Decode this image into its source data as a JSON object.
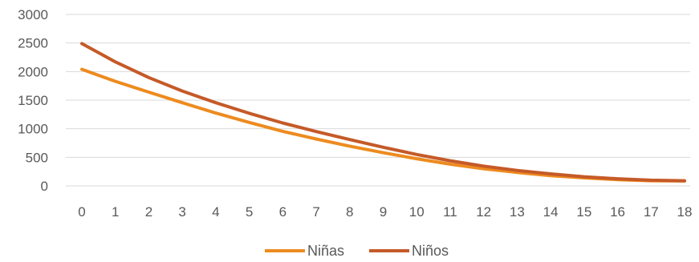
{
  "chart_data": {
    "type": "line",
    "title": "",
    "xlabel": "",
    "ylabel": "",
    "x": [
      0,
      1,
      2,
      3,
      4,
      5,
      6,
      7,
      8,
      9,
      10,
      11,
      12,
      13,
      14,
      15,
      16,
      17,
      18
    ],
    "ylim": [
      0,
      3000
    ],
    "yticks": [
      0,
      500,
      1000,
      1500,
      2000,
      2500,
      3000
    ],
    "grid": true,
    "legend_position": "bottom",
    "series": [
      {
        "name": "Niñas",
        "color": "#ED8B1F",
        "values": [
          2040,
          1830,
          1640,
          1455,
          1275,
          1110,
          955,
          820,
          695,
          580,
          475,
          380,
          300,
          235,
          180,
          140,
          110,
          90,
          85
        ]
      },
      {
        "name": "Niños",
        "color": "#C55A28",
        "values": [
          2490,
          2170,
          1895,
          1660,
          1455,
          1270,
          1100,
          950,
          810,
          675,
          550,
          440,
          345,
          270,
          210,
          160,
          125,
          100,
          90
        ]
      }
    ]
  }
}
